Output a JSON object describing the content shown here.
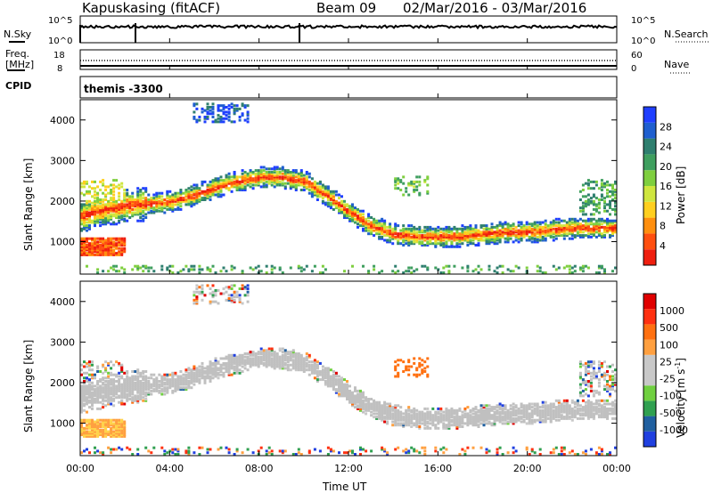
{
  "header": {
    "station": "Kapuskasing (fitACF)",
    "beam": "Beam 09",
    "date_range": "02/Mar/2016 - 03/Mar/2016"
  },
  "noise_panel": {
    "left_label": "N.Sky",
    "right_label": "N.Search",
    "left_ticks": [
      "10^5",
      "10^0"
    ],
    "right_ticks": [
      "10^5",
      "10^0"
    ]
  },
  "freq_panel": {
    "left_label_1": "Freq.",
    "left_label_2": "[MHz]",
    "right_label": "Nave",
    "left_ticks": [
      "18",
      "8"
    ],
    "right_ticks": [
      "60",
      "0"
    ]
  },
  "cpid_panel": {
    "label": "CPID",
    "value": "themis -3300"
  },
  "colors": {
    "power": [
      "#1f3fff",
      "#1f5fcf",
      "#2f7f6f",
      "#3f9f5f",
      "#7fcf3f",
      "#cfe63f",
      "#ffcf1f",
      "#ff8f0f",
      "#ff4f0f",
      "#ef1f0f"
    ],
    "velocity": [
      "#2040e0",
      "#2060a0",
      "#30a050",
      "#70d040",
      "#c8c8c8",
      "#c8c8c8",
      "#ffa040",
      "#ff7010",
      "#ff3010",
      "#e00000"
    ],
    "ground_scatter": "#c0c0c0"
  },
  "chart_data": [
    {
      "type": "heatmap",
      "name": "power",
      "ylabel": "Slant Range [km]",
      "xlabel": "Time UT",
      "x_ticks": [
        "00:00",
        "04:00",
        "08:00",
        "12:00",
        "16:00",
        "20:00",
        "00:00"
      ],
      "xlim_hours": [
        0,
        24
      ],
      "ylim": [
        200,
        4500
      ],
      "y_ticks": [
        1000,
        2000,
        3000,
        4000
      ],
      "colorbar": {
        "label": "Power [dB]",
        "ticks": [
          "4",
          "8",
          "12",
          "16",
          "20",
          "24",
          "28"
        ],
        "range": [
          0,
          30
        ]
      },
      "bands": [
        {
          "desc": "main F-region echo trace center (km) vs hour",
          "hours": [
            0,
            1,
            2,
            3,
            4,
            5,
            6,
            7,
            8,
            9,
            10,
            11,
            12,
            13,
            14,
            15,
            16,
            17,
            18,
            19,
            20,
            21,
            22,
            23,
            24
          ],
          "center_km": [
            1600,
            1750,
            1850,
            1900,
            1950,
            2100,
            2300,
            2450,
            2550,
            2550,
            2450,
            2100,
            1700,
            1350,
            1150,
            1100,
            1080,
            1100,
            1150,
            1200,
            1200,
            1250,
            1300,
            1300,
            1300
          ]
        },
        {
          "desc": "near-range echoes early hours",
          "hours": [
            0,
            1,
            2
          ],
          "center_km": [
            850,
            850,
            800
          ]
        },
        {
          "desc": "scattered E-region echoes near 300 km",
          "hours": [
            0,
            24
          ],
          "center_km": [
            300,
            300
          ]
        }
      ]
    },
    {
      "type": "heatmap",
      "name": "velocity",
      "ylabel": "Slant Range [km]",
      "xlabel": "Time UT",
      "x_ticks": [
        "00:00",
        "04:00",
        "08:00",
        "12:00",
        "16:00",
        "20:00",
        "00:00"
      ],
      "xlim_hours": [
        0,
        24
      ],
      "ylim": [
        200,
        4500
      ],
      "y_ticks": [
        1000,
        2000,
        3000,
        4000
      ],
      "colorbar": {
        "label": "Velocity [m s^-1]",
        "ticks": [
          "1000",
          "500",
          "100",
          "25",
          "-25",
          "-100",
          "-500",
          "-1000"
        ]
      },
      "dominant": "ground scatter (grey) along main trace; orange/yellow (~-100 to -500 m/s) near 850 km at 00:00-02:00 and near 2200 km at 14:00-15:00"
    }
  ]
}
